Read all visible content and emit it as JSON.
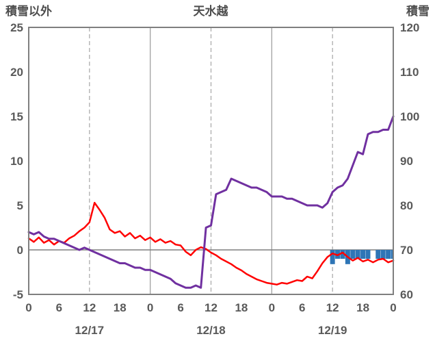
{
  "chart_data": {
    "type": "line",
    "title": "天水越",
    "left_axis": {
      "label": "積雪以外",
      "min": -5,
      "max": 25,
      "ticks": [
        25,
        20,
        15,
        10,
        5,
        0,
        -5
      ]
    },
    "right_axis": {
      "label": "積雪",
      "min": 60,
      "max": 120,
      "ticks": [
        120,
        110,
        100,
        90,
        80,
        70,
        60
      ]
    },
    "x_axis": {
      "hours_total": 72,
      "tick_every": 6,
      "tick_labels": [
        "0",
        "6",
        "12",
        "18",
        "0",
        "6",
        "12",
        "18",
        "0",
        "6",
        "12",
        "18",
        "0"
      ],
      "date_labels": [
        "12/17",
        "12/18",
        "12/19"
      ],
      "solid_grid_hours": [
        24,
        48
      ],
      "dashed_grid_hours": [
        12,
        36,
        60
      ]
    },
    "series": [
      {
        "id": "red-line",
        "type": "line",
        "axis": "left",
        "color": "#ff0000",
        "width": 2.5,
        "x_start": 0,
        "x_step": 1,
        "values": [
          1.3,
          0.9,
          1.4,
          0.8,
          1.1,
          0.6,
          1.0,
          0.8,
          1.3,
          1.6,
          2.1,
          2.5,
          3.1,
          5.3,
          4.5,
          3.6,
          2.3,
          1.9,
          2.1,
          1.5,
          1.9,
          1.3,
          1.6,
          1.1,
          1.4,
          0.9,
          1.2,
          0.8,
          1.0,
          0.6,
          0.5,
          -0.2,
          -0.6,
          0.0,
          0.3,
          0.1,
          -0.3,
          -0.6,
          -1.0,
          -1.3,
          -1.6,
          -2.0,
          -2.3,
          -2.7,
          -3.0,
          -3.3,
          -3.5,
          -3.7,
          -3.8,
          -3.9,
          -3.7,
          -3.8,
          -3.6,
          -3.4,
          -3.5,
          -3.0,
          -3.2,
          -2.4,
          -1.5,
          -0.8,
          -0.4,
          -0.6,
          -0.3,
          -0.8,
          -1.2,
          -0.9,
          -1.3,
          -1.1,
          -1.4,
          -1.1,
          -1.0,
          -1.4,
          -1.2
        ]
      },
      {
        "id": "purple-line",
        "type": "line",
        "axis": "right",
        "color": "#7030a0",
        "width": 3,
        "x_start": 0,
        "x_step": 1,
        "values": [
          74,
          73.5,
          74,
          73,
          72.5,
          72.5,
          72,
          71.5,
          71,
          70.5,
          70,
          70.5,
          70,
          69.5,
          69,
          68.5,
          68,
          67.5,
          67,
          67,
          66.5,
          66,
          66,
          65.5,
          65.5,
          65,
          64.5,
          64,
          63.5,
          62.5,
          62,
          61.5,
          61.5,
          62,
          61.5,
          75,
          75.5,
          82.5,
          83,
          83.5,
          86,
          85.5,
          85,
          84.5,
          84,
          84,
          83.5,
          83,
          82,
          82,
          82,
          81.5,
          81.5,
          81,
          80.5,
          80,
          80,
          80,
          79.5,
          80.5,
          83,
          84,
          84.5,
          86,
          89,
          92,
          91.5,
          96,
          96.5,
          96.5,
          97,
          97,
          100
        ]
      },
      {
        "id": "blue-bars",
        "type": "bar",
        "axis": "left",
        "color": "#2e75b6",
        "below_zero": true,
        "x": [
          60,
          61,
          62,
          63,
          64,
          65,
          66,
          67,
          69,
          70,
          71,
          72
        ],
        "values": [
          1.6,
          1,
          1,
          1.6,
          1,
          1,
          1,
          1,
          1,
          1,
          1,
          1
        ]
      }
    ],
    "colors": {
      "grid": "#a6a6a6",
      "frame": "#7f7f7f",
      "zero_line": "#7f7f7f",
      "text": "#595959"
    },
    "legend": "none",
    "grid": "vertical-every-12h"
  }
}
